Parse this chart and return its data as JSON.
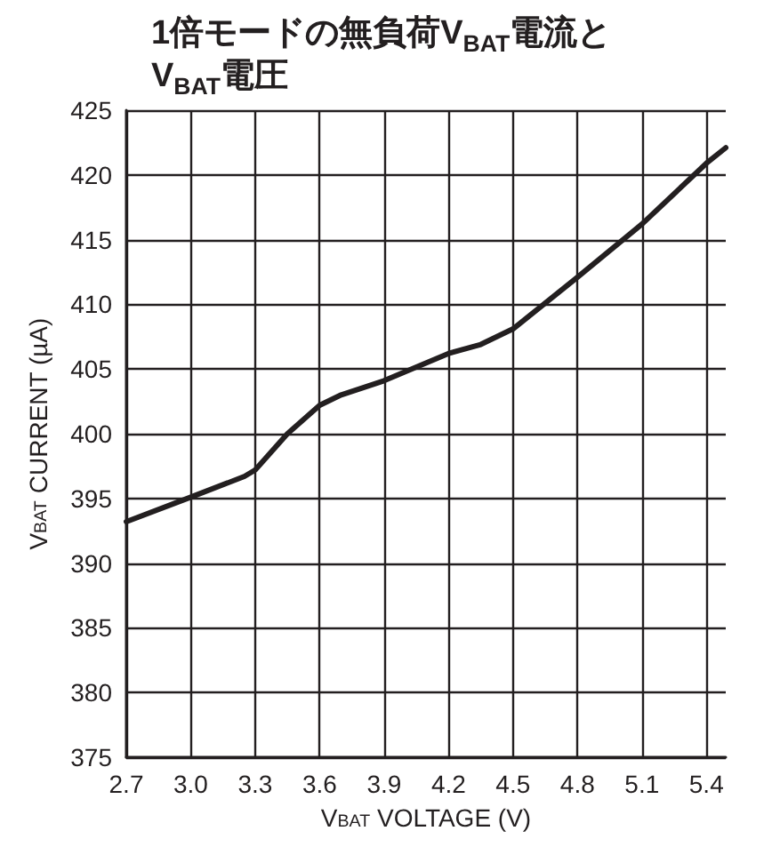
{
  "chart_data": {
    "type": "line",
    "title": "1倍モードの無負荷V$_{BAT}$電流と\nV$_{BAT}$電圧",
    "xlabel": "V$_{BAT}$ VOLTAGE (V)",
    "ylabel": "V$_{BAT}$ CURRENT (µA)",
    "x": [
      2.7,
      3.0,
      3.25,
      3.3,
      3.45,
      3.6,
      3.7,
      3.9,
      4.2,
      4.35,
      4.5,
      4.8,
      5.1,
      5.4,
      5.49
    ],
    "series": [
      {
        "color": "#231f20",
        "values": [
          393.2,
          395.1,
          396.7,
          397.2,
          400.0,
          402.2,
          403.0,
          404.1,
          406.2,
          406.9,
          408.1,
          412.1,
          416.2,
          420.9,
          422.1
        ]
      }
    ],
    "xlim": [
      2.7,
      5.49
    ],
    "xticks": [
      {
        "value": 2.7,
        "label": "2.7"
      },
      {
        "value": 3.0,
        "label": "3.0"
      },
      {
        "value": 3.3,
        "label": "3.3"
      },
      {
        "value": 3.6,
        "label": "3.6"
      },
      {
        "value": 3.9,
        "label": "3.9"
      },
      {
        "value": 4.2,
        "label": "4.2"
      },
      {
        "value": 4.5,
        "label": "4.5"
      },
      {
        "value": 4.8,
        "label": "4.8"
      },
      {
        "value": 5.1,
        "label": "5.1"
      },
      {
        "value": 5.4,
        "label": "5.4"
      }
    ],
    "ylim": [
      375,
      425
    ],
    "yticks": [
      375,
      380,
      385,
      390,
      395,
      400,
      405,
      410,
      415,
      420,
      425
    ],
    "grid": true,
    "line_style": "solid",
    "marker": "none"
  }
}
